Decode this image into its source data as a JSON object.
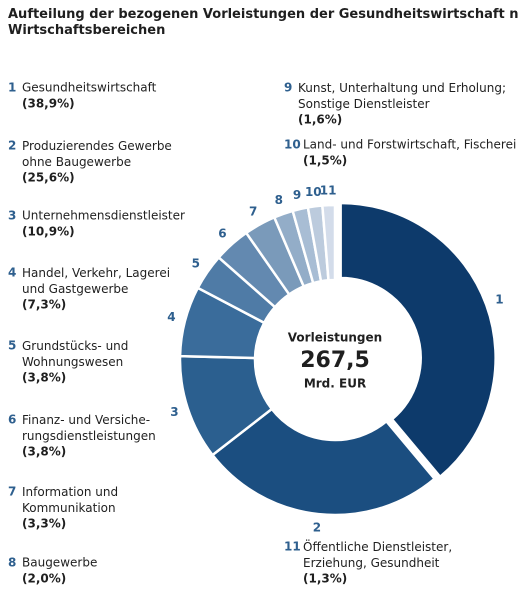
{
  "chart_data": {
    "type": "donut",
    "title": "Aufteilung der bezogenen Vorleistungen der Gesundheitswirtschaft nach\nWirtschaftsbereichen",
    "keys": [
      1,
      2,
      3,
      4,
      5,
      6,
      7,
      8,
      9,
      10,
      11
    ],
    "categories": [
      "Gesundheitswirtschaft",
      "Produzierendes Gewerbe\nohne Baugewerbe",
      "Unternehmensdienstleister",
      "Handel, Verkehr, Lagerei\nund Gastgewerbe",
      "Grundstücks- und\nWohnungswesen",
      "Finanz- und Versiche-\nrungsdienstleistungen",
      "Information und\nKommunikation",
      "Baugewerbe",
      "Kunst, Unterhaltung und Erholung;\nSonstige Dienstleister",
      "Land- und Forstwirtschaft, Fischerei",
      "Öffentliche Dienstleister,\nErziehung, Gesundheit"
    ],
    "values": [
      38.9,
      25.6,
      10.9,
      7.3,
      3.8,
      3.8,
      3.3,
      2.0,
      1.6,
      1.5,
      1.3
    ],
    "value_labels": [
      "(38,9%)",
      "(25,6%)",
      "(10,9%)",
      "(7,3%)",
      "(3,8%)",
      "(3,8%)",
      "(3,3%)",
      "(2,0%)",
      "(1,6%)",
      "(1,5%)",
      "(1,3%)"
    ],
    "colors": [
      "#0d3a6b",
      "#1b4e80",
      "#2b5f8f",
      "#3a6c9b",
      "#4f7ba6",
      "#6389b0",
      "#7a9aba",
      "#93adc8",
      "#a8bdd4",
      "#bccbdd",
      "#d3dcea"
    ],
    "center_title": "Vorleistungen",
    "total": {
      "value": 267.5,
      "label": "267,5"
    },
    "unit": "Mrd. EUR"
  }
}
